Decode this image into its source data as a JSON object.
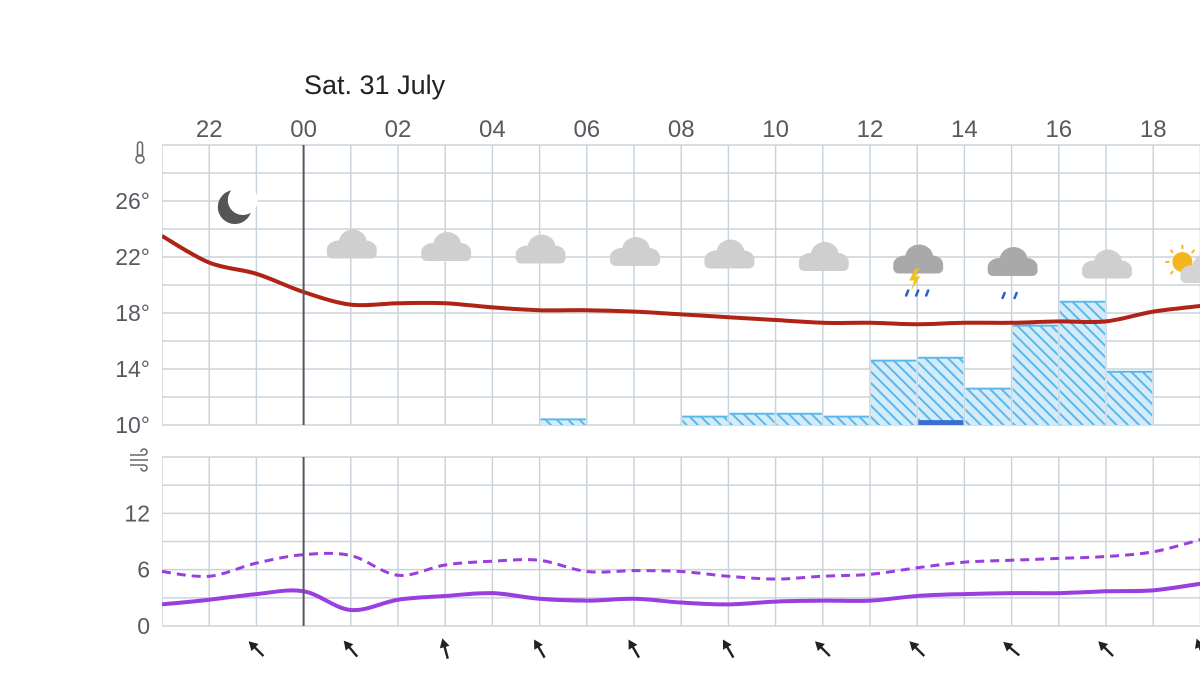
{
  "date_title": "Sat. 31 July",
  "colors": {
    "grid": "#c9d3dc",
    "axis_text": "#555b61",
    "temperature": "#b02418",
    "precip_hatch": "#5ab8ec",
    "precip_fill": "#d4ecfa",
    "precip_solid": "#3a6fd0",
    "wind": "#9a3ee0",
    "midnight_line": "#555566",
    "arrow": "#222222"
  },
  "chart_data": {
    "type": "line",
    "hours": [
      "21",
      "22",
      "23",
      "00",
      "01",
      "02",
      "03",
      "04",
      "05",
      "06",
      "07",
      "08",
      "09",
      "10",
      "11",
      "12",
      "13",
      "14",
      "15",
      "16",
      "17",
      "18",
      "19"
    ],
    "x_tick_labels": [
      "22",
      "00",
      "02",
      "04",
      "06",
      "08",
      "10",
      "12",
      "14",
      "16",
      "18"
    ],
    "temperature_panel": {
      "y_ticks": [
        "26°",
        "22°",
        "18°",
        "14°",
        "10°"
      ],
      "ylim": [
        10,
        30
      ],
      "icon": "thermometer-icon",
      "temperature": [
        23.5,
        21.6,
        20.8,
        19.5,
        18.6,
        18.7,
        18.7,
        18.4,
        18.2,
        18.2,
        18.1,
        17.9,
        17.7,
        17.5,
        17.3,
        17.3,
        17.2,
        17.3,
        17.3,
        17.4,
        17.4,
        18.1,
        18.5
      ],
      "precip_levels": [
        null,
        null,
        null,
        null,
        null,
        null,
        null,
        null,
        10.4,
        null,
        null,
        10.6,
        10.8,
        10.8,
        10.6,
        14.6,
        14.8,
        12.6,
        17.1,
        18.8,
        13.8
      ],
      "precip_solid_levels": [
        null,
        null,
        null,
        null,
        null,
        null,
        null,
        null,
        null,
        null,
        null,
        null,
        null,
        null,
        null,
        null,
        10.35,
        null,
        null,
        null,
        null
      ],
      "weather_icons": [
        {
          "hour": "22.5",
          "icon": "moon-icon"
        },
        {
          "hour": "01",
          "icon": "cloud-icon"
        },
        {
          "hour": "03",
          "icon": "cloud-icon"
        },
        {
          "hour": "05",
          "icon": "cloud-icon"
        },
        {
          "hour": "07",
          "icon": "cloud-icon"
        },
        {
          "hour": "09",
          "icon": "cloud-icon"
        },
        {
          "hour": "11",
          "icon": "cloud-icon"
        },
        {
          "hour": "13",
          "icon": "thunderstorm-icon"
        },
        {
          "hour": "15",
          "icon": "rain-cloud-icon"
        },
        {
          "hour": "17",
          "icon": "cloud-icon"
        },
        {
          "hour": "19",
          "icon": "partly-sunny-icon"
        }
      ]
    },
    "wind_panel": {
      "y_ticks": [
        "12",
        "6",
        "0"
      ],
      "ylim": [
        0,
        18
      ],
      "icon": "wind-icon",
      "series": [
        {
          "style": "dashed",
          "values": [
            5.8,
            5.3,
            6.7,
            7.6,
            7.5,
            5.4,
            6.5,
            6.9,
            7.0,
            5.8,
            5.9,
            5.8,
            5.3,
            5.0,
            5.3,
            5.5,
            6.2,
            6.8,
            7.0,
            7.2,
            7.4,
            7.9,
            9.2
          ]
        },
        {
          "style": "solid",
          "values": [
            2.3,
            2.8,
            3.4,
            3.7,
            1.7,
            2.8,
            3.2,
            3.5,
            2.9,
            2.7,
            2.9,
            2.5,
            2.3,
            2.6,
            2.7,
            2.7,
            3.2,
            3.4,
            3.5,
            3.5,
            3.7,
            3.8,
            4.5
          ]
        }
      ],
      "wind_direction_degrees": [
        null,
        null,
        -45,
        null,
        -40,
        null,
        -15,
        null,
        -30,
        null,
        -30,
        null,
        -30,
        null,
        -45,
        null,
        -45,
        null,
        -50,
        null,
        -45,
        null,
        -20
      ]
    }
  }
}
